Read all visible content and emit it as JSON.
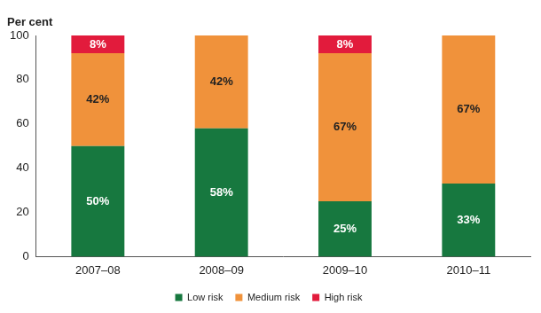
{
  "chart_data": {
    "type": "bar",
    "stacked": true,
    "y_label": "Per cent",
    "categories": [
      "2007–08",
      "2008–09",
      "2009–10",
      "2010–11"
    ],
    "series": [
      {
        "name": "Low risk",
        "color": "#17783f",
        "values": [
          50,
          58,
          25,
          33
        ],
        "value_labels": [
          "50%",
          "58%",
          "25%",
          "33%"
        ]
      },
      {
        "name": "Medium risk",
        "color": "#f0923b",
        "values": [
          42,
          42,
          67,
          67
        ],
        "value_labels": [
          "42%",
          "42%",
          "67%",
          "67%"
        ]
      },
      {
        "name": "High risk",
        "color": "#e21b3c",
        "values": [
          8,
          0,
          8,
          0
        ],
        "value_labels": [
          "8%",
          null,
          "8%",
          null
        ]
      }
    ],
    "ylim": [
      0,
      100
    ],
    "yticks": [
      0,
      20,
      40,
      60,
      80,
      100
    ],
    "grid": false,
    "legend": "bottom",
    "data_labels": true
  }
}
